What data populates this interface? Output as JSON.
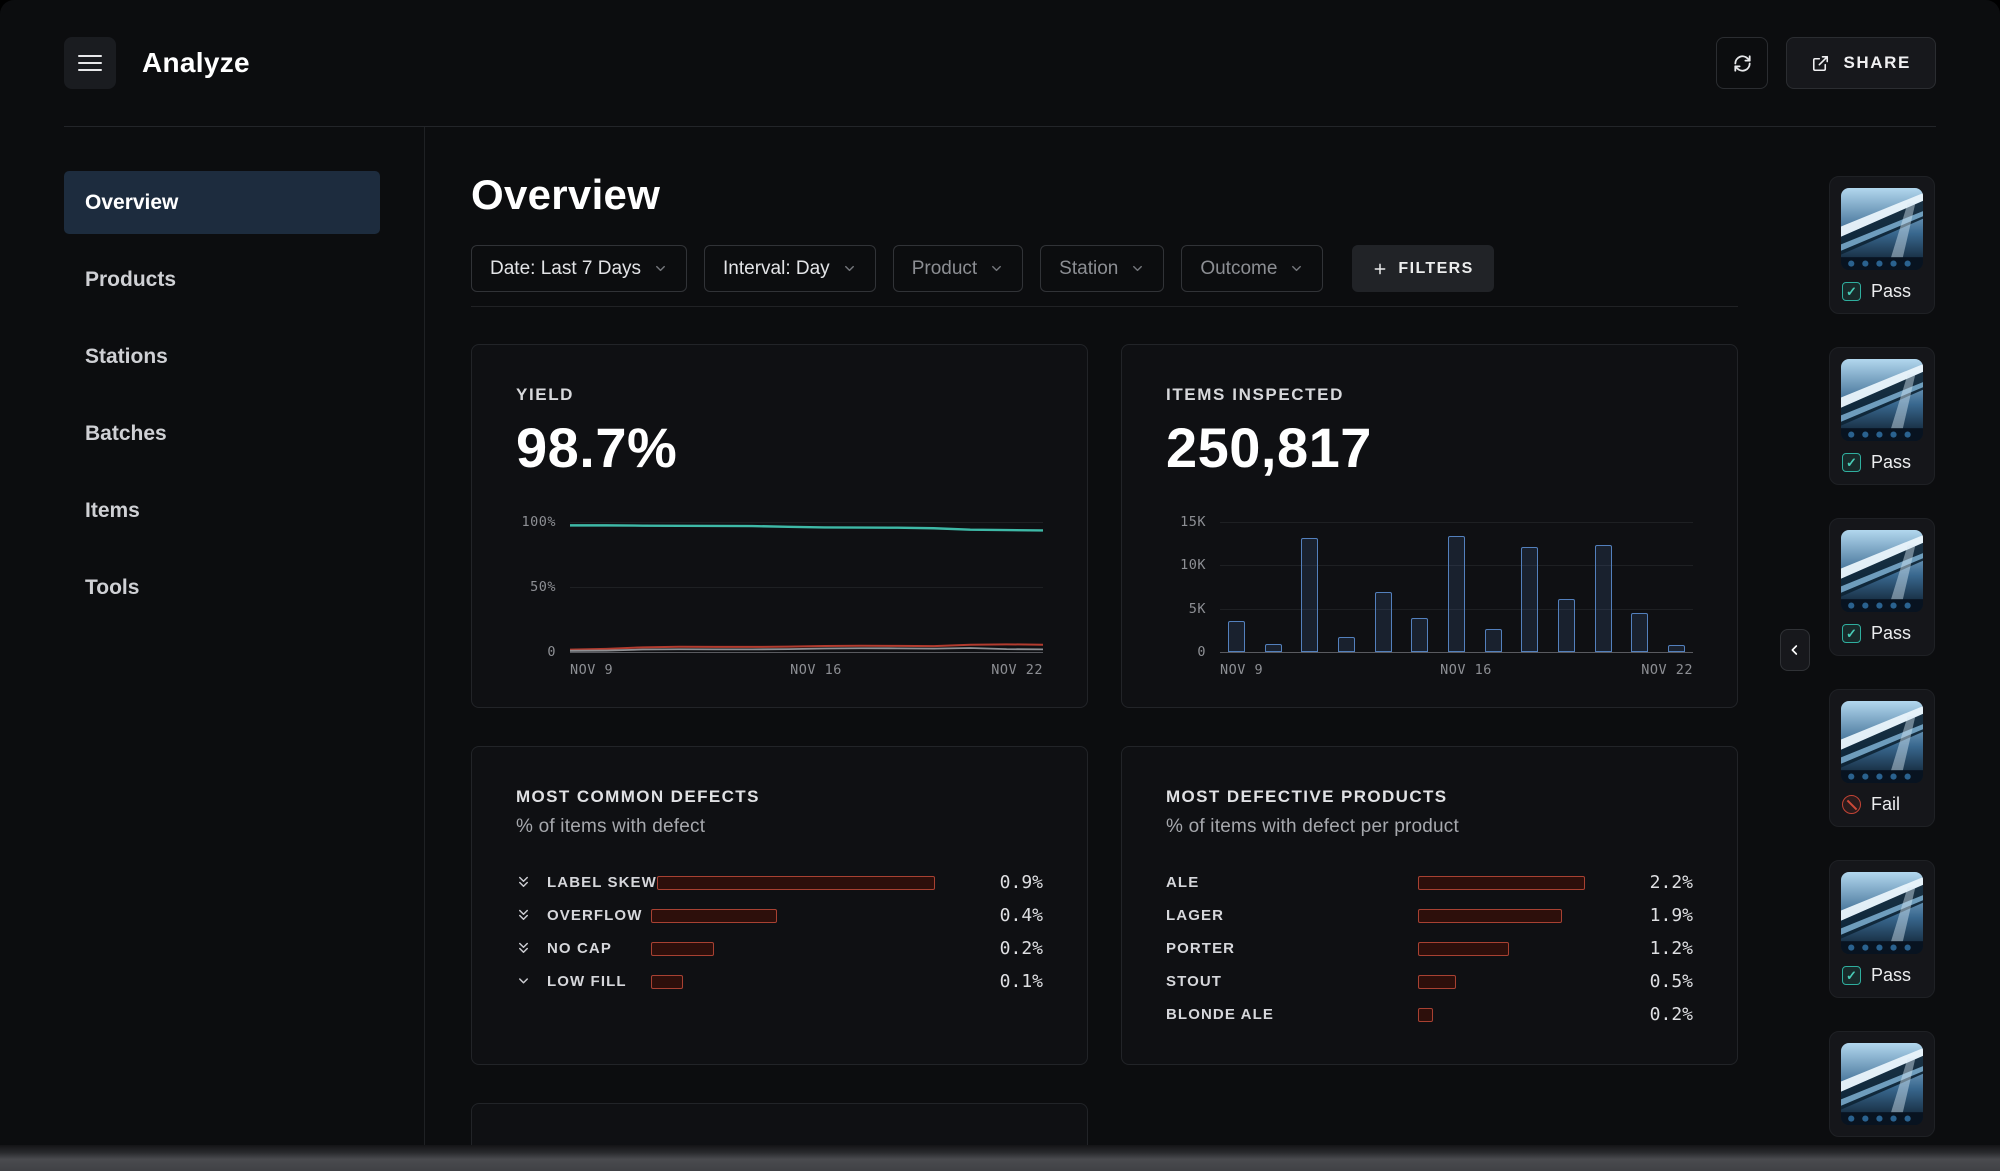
{
  "header": {
    "app_title": "Analyze",
    "share_label": "SHARE"
  },
  "sidebar": {
    "items": [
      {
        "label": "Overview",
        "active": true
      },
      {
        "label": "Products",
        "active": false
      },
      {
        "label": "Stations",
        "active": false
      },
      {
        "label": "Batches",
        "active": false
      },
      {
        "label": "Items",
        "active": false
      },
      {
        "label": "Tools",
        "active": false
      }
    ]
  },
  "main": {
    "title": "Overview",
    "filters": [
      {
        "label": "Date: Last 7 Days",
        "muted": false
      },
      {
        "label": "Interval: Day",
        "muted": false
      },
      {
        "label": "Product",
        "muted": true
      },
      {
        "label": "Station",
        "muted": true
      },
      {
        "label": "Outcome",
        "muted": true
      }
    ],
    "filters_button_label": "FILTERS"
  },
  "chart_data": [
    {
      "id": "yield",
      "type": "line",
      "title": "YIELD",
      "big_value": "98.7%",
      "ylim": [
        0,
        100
      ],
      "yticks": [
        "100%",
        "50%",
        "0"
      ],
      "xticks": [
        "NOV 9",
        "NOV 16",
        "NOV 22"
      ],
      "series": [
        {
          "name": "yield-pct",
          "color": "#3eb9a7",
          "width": 2.4,
          "values": [
            97.4,
            97.4,
            97.2,
            97.1,
            97.0,
            96.9,
            96.3,
            95.8,
            95.7,
            95.6,
            95.2,
            94.1,
            93.8,
            93.5
          ]
        },
        {
          "name": "defect-pct",
          "color": "#b23b2e",
          "width": 2,
          "values": [
            1.8,
            2.4,
            3.6,
            4.0,
            3.9,
            3.9,
            4.1,
            4.6,
            4.8,
            4.7,
            4.5,
            5.6,
            5.9,
            5.6
          ]
        },
        {
          "name": "other-pct",
          "color": "#8e9094",
          "width": 1.8,
          "values": [
            0.9,
            1.1,
            1.9,
            2.1,
            2.0,
            2.0,
            2.2,
            2.7,
            2.9,
            2.8,
            2.6,
            3.1,
            2.2,
            2.0
          ]
        }
      ]
    },
    {
      "id": "items-inspected",
      "type": "bar",
      "title": "ITEMS INSPECTED",
      "big_value": "250,817",
      "ylim": [
        0,
        15000
      ],
      "yticks": [
        "15K",
        "10K",
        "5K",
        "0"
      ],
      "xticks": [
        "NOV 9",
        "NOV 16",
        "NOV 22"
      ],
      "values": [
        3600,
        900,
        13100,
        1700,
        6900,
        3900,
        13400,
        2700,
        12100,
        6100,
        12400,
        4500,
        800
      ],
      "bar_color": "#5380bd"
    },
    {
      "id": "common-defects",
      "type": "hbar",
      "title": "MOST COMMON DEFECTS",
      "subtitle": "% of items with defect",
      "bar_color": "#a84132",
      "rows": [
        {
          "label": "LABEL SKEW",
          "value": 0.9,
          "display": "0.9%",
          "chevron": "double"
        },
        {
          "label": "OVERFLOW",
          "value": 0.4,
          "display": "0.4%",
          "chevron": "double"
        },
        {
          "label": "NO CAP",
          "value": 0.2,
          "display": "0.2%",
          "chevron": "double"
        },
        {
          "label": "LOW FILL",
          "value": 0.1,
          "display": "0.1%",
          "chevron": "single"
        }
      ]
    },
    {
      "id": "defective-products",
      "type": "hbar",
      "title": "MOST DEFECTIVE PRODUCTS",
      "subtitle": "% of items with defect per product",
      "bar_color": "#a84132",
      "rows": [
        {
          "label": "ALE",
          "value": 2.2,
          "display": "2.2%"
        },
        {
          "label": "LAGER",
          "value": 1.9,
          "display": "1.9%"
        },
        {
          "label": "PORTER",
          "value": 1.2,
          "display": "1.2%"
        },
        {
          "label": "STOUT",
          "value": 0.5,
          "display": "0.5%"
        },
        {
          "label": "BLONDE ALE",
          "value": 0.2,
          "display": "0.2%"
        }
      ]
    }
  ],
  "review_rail": {
    "items": [
      {
        "status": "Pass"
      },
      {
        "status": "Pass"
      },
      {
        "status": "Pass"
      },
      {
        "status": "Fail"
      },
      {
        "status": "Pass"
      },
      {
        "status": null
      }
    ]
  },
  "colors": {
    "accent_teal": "#3eb9a7",
    "alert_red": "#b23b2e",
    "bar_blue": "#5380bd",
    "active_nav": "#1d2c3e"
  }
}
